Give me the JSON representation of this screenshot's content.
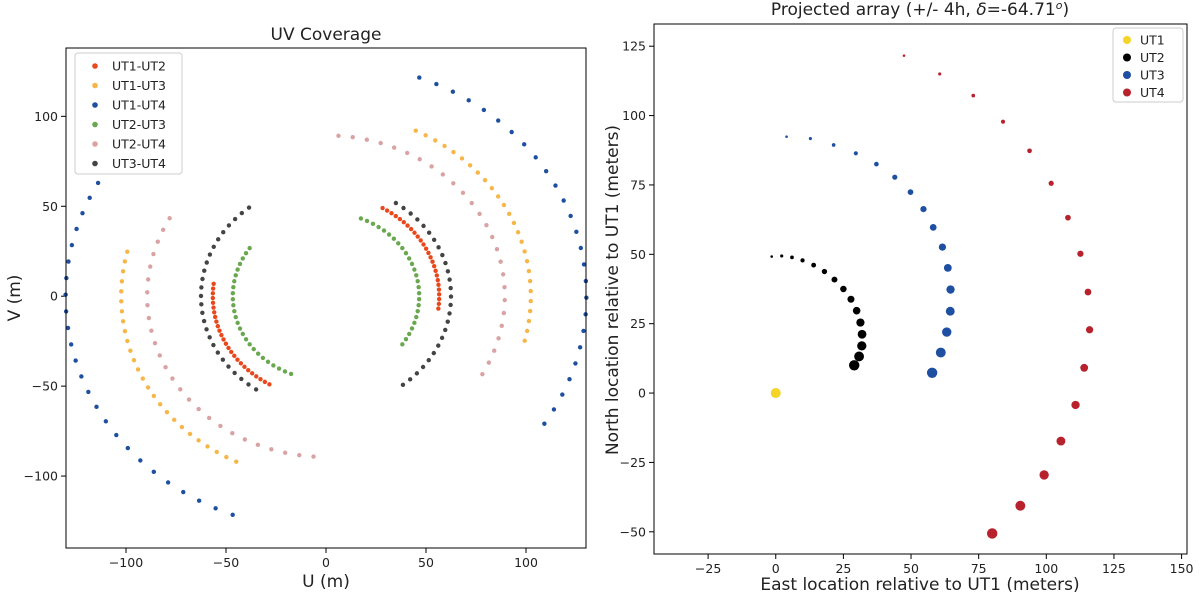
{
  "chart_data": [
    {
      "type": "scatter",
      "title": "UV Coverage",
      "xlabel": "U (m)",
      "ylabel": "V (m)",
      "xlim": [
        -130,
        130
      ],
      "ylim": [
        -140,
        138
      ],
      "xticks": [
        -100,
        -50,
        0,
        50,
        100
      ],
      "yticks": [
        -100,
        -50,
        0,
        50,
        100
      ],
      "xtick_labels": [
        "−100",
        "−50",
        "0",
        "50",
        "100"
      ],
      "ytick_labels": [
        "−100",
        "−50",
        "0",
        "50",
        "100"
      ],
      "legend_position": "top-left",
      "series": [
        {
          "name": "UT1-UT2",
          "color": "#e8481c",
          "baseline": 56.6,
          "start_angle_deg": 60,
          "end_angle_deg": -7,
          "points": 26
        },
        {
          "name": "UT1-UT3",
          "color": "#f7b648",
          "baseline": 102.4,
          "start_angle_deg": 64,
          "end_angle_deg": -14,
          "points": 26
        },
        {
          "name": "UT1-UT4",
          "color": "#1f4fa0",
          "baseline": 130.2,
          "start_angle_deg": 69,
          "end_angle_deg": -33,
          "points": 26
        },
        {
          "name": "UT2-UT3",
          "color": "#6aa84f",
          "baseline": 46.6,
          "start_angle_deg": 68,
          "end_angle_deg": -35,
          "points": 26
        },
        {
          "name": "UT2-UT4",
          "color": "#d9a3a3",
          "baseline": 89.4,
          "start_angle_deg": 86,
          "end_angle_deg": -29,
          "points": 26
        },
        {
          "name": "UT3-UT4",
          "color": "#444444",
          "baseline": 62.5,
          "start_angle_deg": 56,
          "end_angle_deg": -52,
          "points": 26
        }
      ]
    },
    {
      "type": "scatter",
      "title": "Projected array (+/- 4h, δ=-64.71°)",
      "title_text": "Projected array (+/- 4h, ",
      "title_delta": "δ",
      "title_value": "=-64.71",
      "title_degree": "o",
      "title_close": ")",
      "xlabel": "East location relative to UT1 (meters)",
      "ylabel": "North location relative to UT1 (meters)",
      "xlim": [
        -45,
        152
      ],
      "ylim": [
        -58,
        133
      ],
      "xticks": [
        -25,
        0,
        25,
        50,
        75,
        100,
        125,
        150
      ],
      "yticks": [
        -50,
        -25,
        0,
        25,
        50,
        75,
        100,
        125
      ],
      "xtick_labels": [
        "−25",
        "0",
        "25",
        "50",
        "75",
        "100",
        "125",
        "150"
      ],
      "ytick_labels": [
        "−50",
        "−25",
        "0",
        "25",
        "50",
        "75",
        "100",
        "125"
      ],
      "legend_position": "top-right",
      "series": [
        {
          "name": "UT1",
          "color": "#f5d327",
          "x": [
            0
          ],
          "y": [
            0
          ]
        },
        {
          "name": "UT2",
          "color": "#000000",
          "x": [
            -1.5,
            2.2,
            6.0,
            9.9,
            14.0,
            18.0,
            21.7,
            25.0,
            27.8,
            29.9,
            31.3,
            31.9,
            31.8,
            30.8,
            29.0
          ],
          "y": [
            49.2,
            49.4,
            48.9,
            47.8,
            46.1,
            43.8,
            40.9,
            37.5,
            33.8,
            29.7,
            25.4,
            21.2,
            17.0,
            13.2,
            10.0
          ]
        },
        {
          "name": "UT3",
          "color": "#1f4fa0",
          "x": [
            4.0,
            12.8,
            21.4,
            29.6,
            37.2,
            44.0,
            49.8,
            54.6,
            58.2,
            61.6,
            63.6,
            64.6,
            64.5,
            63.2,
            61.0,
            57.8
          ],
          "y": [
            92.4,
            91.7,
            89.4,
            86.4,
            82.5,
            77.8,
            72.4,
            66.3,
            59.7,
            52.6,
            45.1,
            37.3,
            29.5,
            22.0,
            14.6,
            7.3
          ]
        },
        {
          "name": "UT4",
          "color": "#b8222c",
          "x": [
            47.4,
            60.6,
            73.0,
            84.0,
            93.8,
            101.8,
            108.0,
            112.6,
            115.4,
            116.0,
            114.0,
            110.8,
            105.4,
            99.2,
            90.4,
            80.0
          ],
          "y": [
            121.6,
            115.0,
            107.2,
            97.8,
            87.3,
            75.6,
            63.2,
            50.2,
            36.4,
            22.8,
            9.1,
            -4.3,
            -17.3,
            -29.5,
            -40.6,
            -50.6
          ]
        }
      ]
    }
  ]
}
